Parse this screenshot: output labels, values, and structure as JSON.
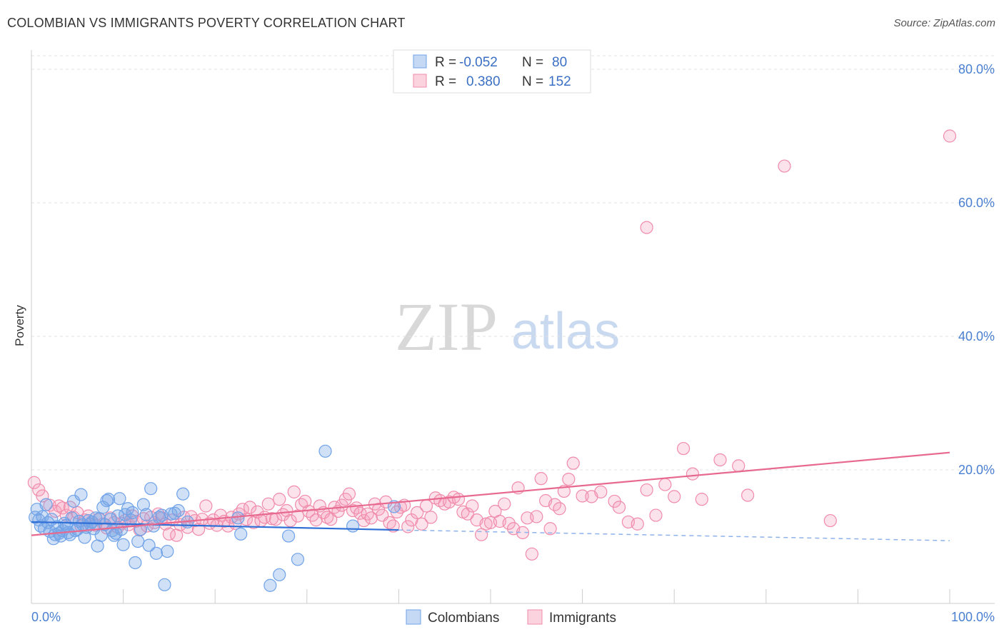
{
  "header": {
    "title": "COLOMBIAN VS IMMIGRANTS POVERTY CORRELATION CHART",
    "source": "Source: ZipAtlas.com"
  },
  "watermark": {
    "zip": "ZIP",
    "atlas": "atlas"
  },
  "legend_box": {
    "rows": [
      {
        "r_label": "R =",
        "r_value": "-0.052",
        "n_label": "N =",
        "n_value": "80",
        "color": "#6fa2e8"
      },
      {
        "r_label": "R =",
        "r_value": "0.380",
        "n_label": "N =",
        "n_value": "152",
        "color": "#f08bab"
      }
    ]
  },
  "bottom_legend": {
    "items": [
      {
        "label": "Colombians",
        "color": "#6fa2e8"
      },
      {
        "label": "Immigrants",
        "color": "#f08bab"
      }
    ]
  },
  "chart_data": {
    "type": "scatter",
    "title": "COLOMBIAN VS IMMIGRANTS POVERTY CORRELATION CHART",
    "xlabel": "",
    "ylabel": "Poverty",
    "xlim": [
      0,
      100
    ],
    "ylim": [
      0,
      80
    ],
    "x_tick_labels": [
      "0.0%",
      "100.0%"
    ],
    "y_ticks": [
      20,
      40,
      60,
      80
    ],
    "y_tick_labels": [
      "20.0%",
      "40.0%",
      "60.0%",
      "80.0%"
    ],
    "grid": true,
    "legend_position": "top-center",
    "series": [
      {
        "name": "Colombians",
        "color": "#6fa2e8",
        "trend": {
          "x": [
            0,
            40
          ],
          "y": [
            12.2,
            11.0
          ],
          "dashed_to": [
            100,
            9.4
          ]
        },
        "points": [
          [
            0.4,
            12.9
          ],
          [
            0.6,
            14.1
          ],
          [
            0.8,
            12.5
          ],
          [
            1.0,
            11.6
          ],
          [
            1.2,
            13.0
          ],
          [
            1.4,
            11.2
          ],
          [
            1.6,
            14.8
          ],
          [
            1.8,
            12.1
          ],
          [
            2.0,
            10.8
          ],
          [
            2.2,
            12.6
          ],
          [
            2.4,
            9.7
          ],
          [
            2.6,
            10.3
          ],
          [
            2.8,
            11.5
          ],
          [
            3.0,
            10.5
          ],
          [
            3.2,
            10.1
          ],
          [
            3.4,
            10.9
          ],
          [
            3.6,
            12.0
          ],
          [
            3.8,
            11.7
          ],
          [
            4.0,
            10.6
          ],
          [
            4.2,
            10.3
          ],
          [
            4.4,
            12.8
          ],
          [
            4.6,
            15.3
          ],
          [
            4.8,
            10.9
          ],
          [
            5.0,
            11.1
          ],
          [
            5.2,
            12.3
          ],
          [
            5.4,
            16.3
          ],
          [
            5.6,
            11.8
          ],
          [
            5.8,
            9.9
          ],
          [
            6.0,
            11.4
          ],
          [
            6.2,
            12.4
          ],
          [
            6.4,
            11.9
          ],
          [
            6.6,
            12.2
          ],
          [
            6.8,
            11.2
          ],
          [
            7.0,
            12.8
          ],
          [
            7.2,
            8.6
          ],
          [
            7.4,
            12.7
          ],
          [
            7.6,
            10.2
          ],
          [
            7.8,
            14.4
          ],
          [
            8.0,
            11.8
          ],
          [
            8.2,
            15.4
          ],
          [
            8.4,
            15.6
          ],
          [
            8.6,
            12.6
          ],
          [
            8.8,
            10.9
          ],
          [
            9.0,
            10.2
          ],
          [
            9.2,
            10.5
          ],
          [
            9.4,
            13.1
          ],
          [
            9.6,
            15.7
          ],
          [
            9.8,
            11.1
          ],
          [
            10.0,
            8.8
          ],
          [
            10.2,
            13.3
          ],
          [
            10.5,
            14.2
          ],
          [
            10.8,
            12.5
          ],
          [
            11.0,
            13.6
          ],
          [
            11.3,
            6.1
          ],
          [
            11.6,
            9.3
          ],
          [
            11.9,
            11.1
          ],
          [
            12.2,
            14.8
          ],
          [
            12.5,
            13.3
          ],
          [
            12.8,
            8.7
          ],
          [
            13.0,
            17.2
          ],
          [
            13.3,
            11.6
          ],
          [
            13.6,
            7.5
          ],
          [
            13.9,
            12.9
          ],
          [
            14.2,
            13.2
          ],
          [
            14.5,
            2.8
          ],
          [
            14.8,
            7.8
          ],
          [
            15.2,
            13.4
          ],
          [
            15.6,
            13.5
          ],
          [
            16.0,
            13.9
          ],
          [
            16.5,
            16.4
          ],
          [
            17.0,
            12.2
          ],
          [
            22.5,
            12.8
          ],
          [
            22.8,
            10.4
          ],
          [
            26.0,
            2.7
          ],
          [
            27.0,
            4.3
          ],
          [
            28.0,
            10.1
          ],
          [
            29.0,
            6.6
          ],
          [
            32.0,
            22.8
          ],
          [
            35.0,
            11.6
          ],
          [
            39.5,
            14.5
          ]
        ]
      },
      {
        "name": "Immigrants",
        "color": "#f08bab",
        "trend": {
          "x": [
            0,
            100
          ],
          "y": [
            10.2,
            22.6
          ]
        },
        "points": [
          [
            0.3,
            18.1
          ],
          [
            0.8,
            17.0
          ],
          [
            1.2,
            16.1
          ],
          [
            2.0,
            14.7
          ],
          [
            2.6,
            13.8
          ],
          [
            3.0,
            14.6
          ],
          [
            3.4,
            14.3
          ],
          [
            3.8,
            13.2
          ],
          [
            4.2,
            14.4
          ],
          [
            4.6,
            12.9
          ],
          [
            5.0,
            13.6
          ],
          [
            5.4,
            11.6
          ],
          [
            5.8,
            12.5
          ],
          [
            6.2,
            13.1
          ],
          [
            6.6,
            12.2
          ],
          [
            7.0,
            11.7
          ],
          [
            7.4,
            12.6
          ],
          [
            7.8,
            11.9
          ],
          [
            8.2,
            11.3
          ],
          [
            8.6,
            12.8
          ],
          [
            9.0,
            12.1
          ],
          [
            9.4,
            11.4
          ],
          [
            9.8,
            12.0
          ],
          [
            10.2,
            12.4
          ],
          [
            10.6,
            11.8
          ],
          [
            11.0,
            13.1
          ],
          [
            11.4,
            12.3
          ],
          [
            11.8,
            11.0
          ],
          [
            12.2,
            12.7
          ],
          [
            12.6,
            11.6
          ],
          [
            13.0,
            12.9
          ],
          [
            13.4,
            12.1
          ],
          [
            13.8,
            13.4
          ],
          [
            14.2,
            12.8
          ],
          [
            14.6,
            11.9
          ],
          [
            15.0,
            10.4
          ],
          [
            15.4,
            12.5
          ],
          [
            15.8,
            10.2
          ],
          [
            16.2,
            11.8
          ],
          [
            16.6,
            12.9
          ],
          [
            17.0,
            11.4
          ],
          [
            17.4,
            13.0
          ],
          [
            17.8,
            12.4
          ],
          [
            18.2,
            11.1
          ],
          [
            18.6,
            12.6
          ],
          [
            19.0,
            14.6
          ],
          [
            19.4,
            12.0
          ],
          [
            19.8,
            12.5
          ],
          [
            20.2,
            11.7
          ],
          [
            20.6,
            13.2
          ],
          [
            21.0,
            12.3
          ],
          [
            21.4,
            11.6
          ],
          [
            21.8,
            12.9
          ],
          [
            22.2,
            12.0
          ],
          [
            22.6,
            13.4
          ],
          [
            23.0,
            14.1
          ],
          [
            23.4,
            12.6
          ],
          [
            23.8,
            14.4
          ],
          [
            24.2,
            12.1
          ],
          [
            24.6,
            13.7
          ],
          [
            25.0,
            12.4
          ],
          [
            25.4,
            12.9
          ],
          [
            25.8,
            14.9
          ],
          [
            26.2,
            12.7
          ],
          [
            26.6,
            12.6
          ],
          [
            27.0,
            15.6
          ],
          [
            27.4,
            13.3
          ],
          [
            27.8,
            13.9
          ],
          [
            28.2,
            12.4
          ],
          [
            28.6,
            16.7
          ],
          [
            29.0,
            13.1
          ],
          [
            29.4,
            14.8
          ],
          [
            29.8,
            15.3
          ],
          [
            30.2,
            13.8
          ],
          [
            30.6,
            13.2
          ],
          [
            31.0,
            12.5
          ],
          [
            31.4,
            14.6
          ],
          [
            31.8,
            13.6
          ],
          [
            32.2,
            12.9
          ],
          [
            32.6,
            12.6
          ],
          [
            33.0,
            14.4
          ],
          [
            33.4,
            13.8
          ],
          [
            33.8,
            14.7
          ],
          [
            34.2,
            15.6
          ],
          [
            34.6,
            16.4
          ],
          [
            35.0,
            13.9
          ],
          [
            35.4,
            14.3
          ],
          [
            35.8,
            13.5
          ],
          [
            36.2,
            12.4
          ],
          [
            36.6,
            13.4
          ],
          [
            37.0,
            12.8
          ],
          [
            37.4,
            14.9
          ],
          [
            37.8,
            14.1
          ],
          [
            38.2,
            13.2
          ],
          [
            38.6,
            15.2
          ],
          [
            39.0,
            12.1
          ],
          [
            39.4,
            11.6
          ],
          [
            39.8,
            13.7
          ],
          [
            40.2,
            14.4
          ],
          [
            40.6,
            14.7
          ],
          [
            41.0,
            11.5
          ],
          [
            41.4,
            12.5
          ],
          [
            42.0,
            13.6
          ],
          [
            42.5,
            11.9
          ],
          [
            43.0,
            14.6
          ],
          [
            43.5,
            12.9
          ],
          [
            44.0,
            15.8
          ],
          [
            44.5,
            15.4
          ],
          [
            45.0,
            14.9
          ],
          [
            45.5,
            15.2
          ],
          [
            46.0,
            15.9
          ],
          [
            46.5,
            15.6
          ],
          [
            47.0,
            13.7
          ],
          [
            47.5,
            13.4
          ],
          [
            48.0,
            14.6
          ],
          [
            48.5,
            12.5
          ],
          [
            49.0,
            10.3
          ],
          [
            49.5,
            11.9
          ],
          [
            50.0,
            12.1
          ],
          [
            50.5,
            13.8
          ],
          [
            51.0,
            12.3
          ],
          [
            51.5,
            14.9
          ],
          [
            52.0,
            12.0
          ],
          [
            52.5,
            11.2
          ],
          [
            53.0,
            17.3
          ],
          [
            53.5,
            10.6
          ],
          [
            54.0,
            12.8
          ],
          [
            54.5,
            7.4
          ],
          [
            55.0,
            13.0
          ],
          [
            55.5,
            18.7
          ],
          [
            56.0,
            15.4
          ],
          [
            56.5,
            11.2
          ],
          [
            57.0,
            14.8
          ],
          [
            57.5,
            14.2
          ],
          [
            58.0,
            16.8
          ],
          [
            58.5,
            18.6
          ],
          [
            59.0,
            21.0
          ],
          [
            60.0,
            16.1
          ],
          [
            61.0,
            16.0
          ],
          [
            62.0,
            16.7
          ],
          [
            63.5,
            15.3
          ],
          [
            64.0,
            14.4
          ],
          [
            65.0,
            12.2
          ],
          [
            66.0,
            11.9
          ],
          [
            67.0,
            17.0
          ],
          [
            68.0,
            13.2
          ],
          [
            69.0,
            17.8
          ],
          [
            70.0,
            16.0
          ],
          [
            71.0,
            23.2
          ],
          [
            72.0,
            19.4
          ],
          [
            73.0,
            15.6
          ],
          [
            75.0,
            21.5
          ],
          [
            77.0,
            20.6
          ],
          [
            87.0,
            12.4
          ],
          [
            82.0,
            65.5
          ],
          [
            100.0,
            70.0
          ],
          [
            67.0,
            56.3
          ],
          [
            78.0,
            16.2
          ]
        ]
      }
    ]
  }
}
